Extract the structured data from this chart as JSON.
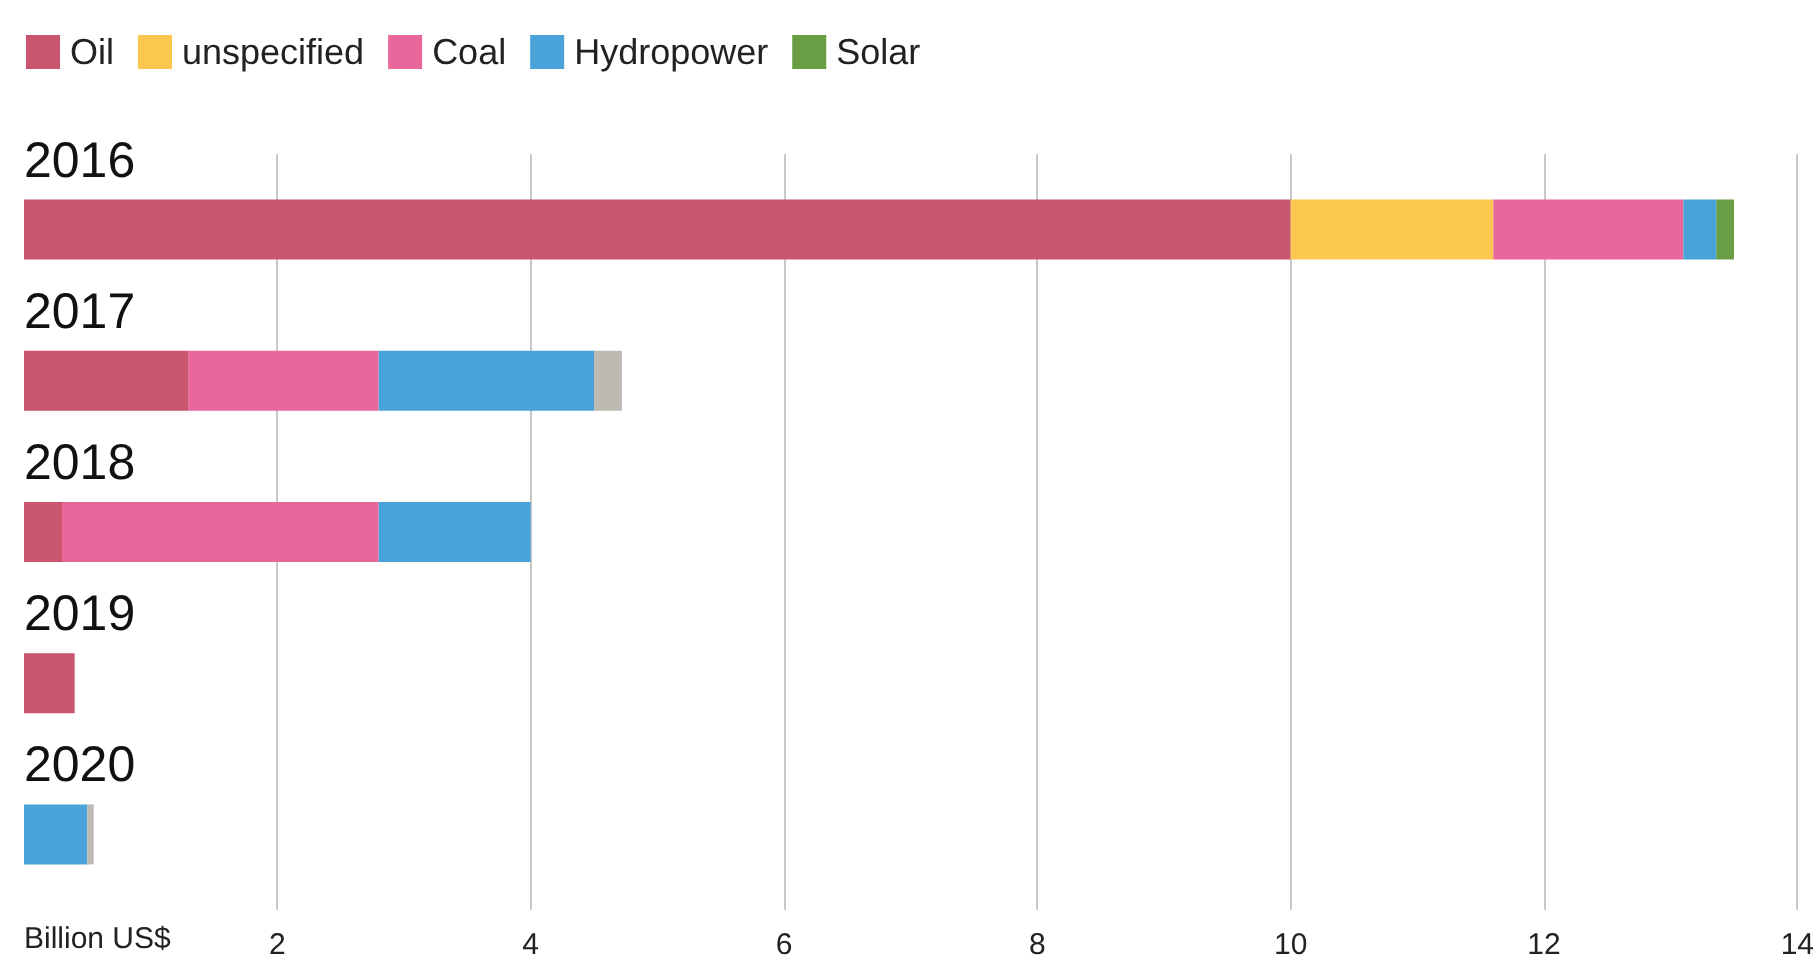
{
  "chart_data": {
    "type": "bar",
    "orientation": "horizontal",
    "stacked": true,
    "xlabel": "Billion US$",
    "categories": [
      "2016",
      "2017",
      "2018",
      "2019",
      "2020"
    ],
    "series": [
      {
        "name": "Oil",
        "color": "#c9566e",
        "values": [
          10,
          1.3,
          0.3,
          0.4,
          null
        ]
      },
      {
        "name": "unspecified",
        "color": "#fbc74f",
        "values": [
          1.6,
          null,
          null,
          null,
          null
        ]
      },
      {
        "name": "Coal",
        "color": "#e9679b",
        "values": [
          1.5,
          1.5,
          2.5,
          null,
          null
        ]
      },
      {
        "name": "Hydropower",
        "color": "#4aa3d8",
        "values": [
          0.26,
          1.7,
          1.2,
          null,
          0.5
        ]
      },
      {
        "name": "Solar",
        "color": "#6a9e45",
        "values": [
          0.14,
          null,
          null,
          null,
          null
        ]
      },
      {
        "color": "#bdbab4",
        "values": [
          null,
          0.22,
          null,
          null,
          0.05
        ]
      }
    ],
    "xlim": [
      0,
      14
    ],
    "xticks": [
      2,
      4,
      6,
      8,
      10,
      12,
      14
    ],
    "grid": "x",
    "legend": "top left"
  }
}
